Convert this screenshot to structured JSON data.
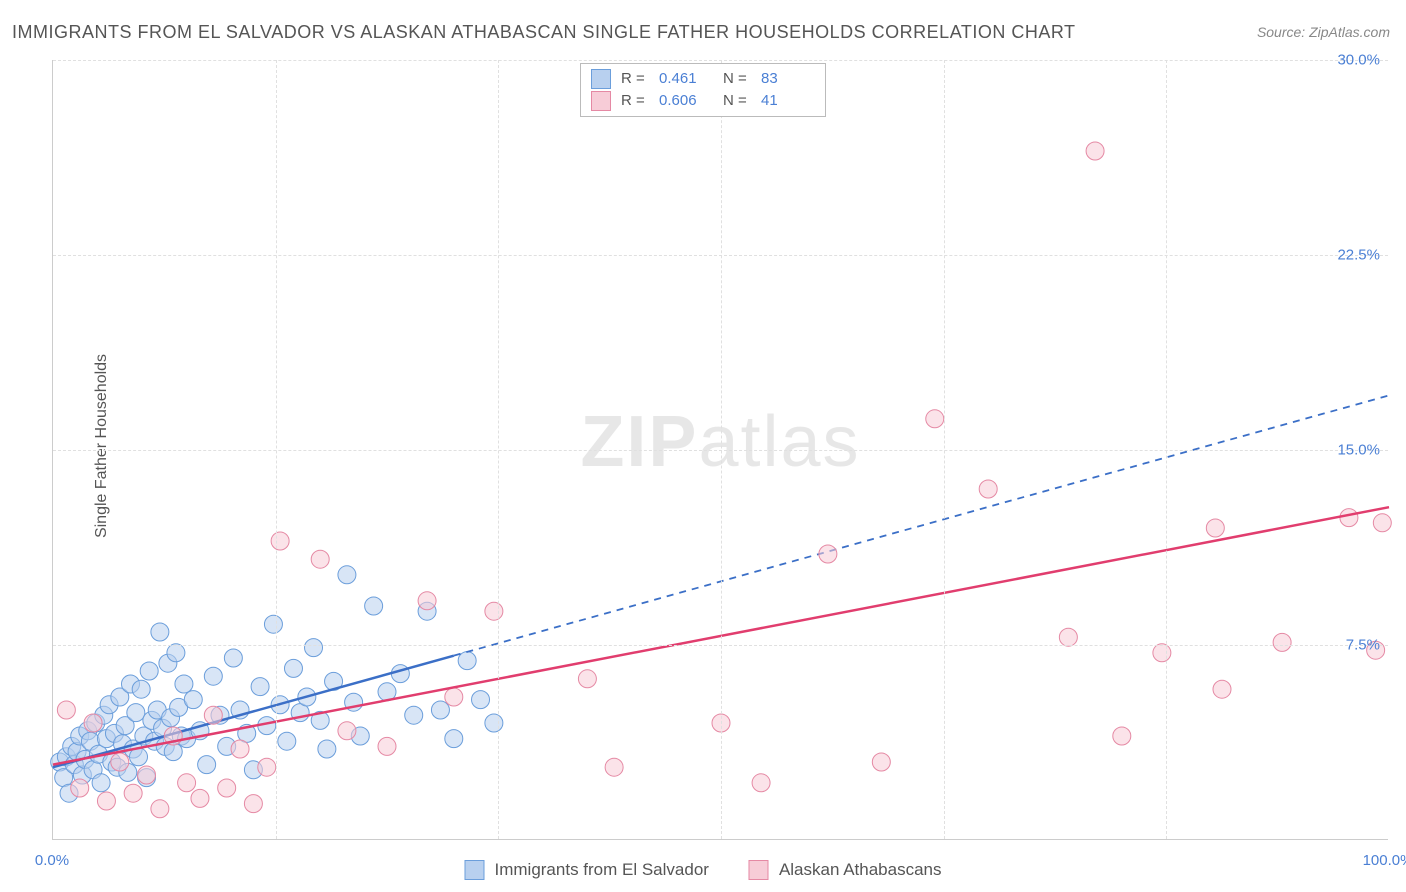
{
  "title": "IMMIGRANTS FROM EL SALVADOR VS ALASKAN ATHABASCAN SINGLE FATHER HOUSEHOLDS CORRELATION CHART",
  "source": "Source: ZipAtlas.com",
  "y_axis_label": "Single Father Households",
  "watermark_bold": "ZIP",
  "watermark_light": "atlas",
  "chart": {
    "type": "scatter",
    "background_color": "#ffffff",
    "grid_color": "#e0e0e0",
    "axis_color": "#cccccc",
    "tick_label_color": "#4a7fd4",
    "text_color": "#555555",
    "xlim": [
      0,
      100
    ],
    "ylim": [
      0,
      30
    ],
    "x_ticks": [
      {
        "pos": 0,
        "label": "0.0%"
      },
      {
        "pos": 100,
        "label": "100.0%"
      }
    ],
    "y_ticks": [
      {
        "pos": 7.5,
        "label": "7.5%"
      },
      {
        "pos": 15.0,
        "label": "15.0%"
      },
      {
        "pos": 22.5,
        "label": "22.5%"
      },
      {
        "pos": 30.0,
        "label": "30.0%"
      }
    ],
    "x_gridlines": [
      16.67,
      33.33,
      50,
      66.67,
      83.33
    ],
    "marker_radius": 9,
    "marker_opacity": 0.55,
    "line_width": 2.5
  },
  "r_legend": {
    "rows": [
      {
        "swatch_fill": "#b8d0ef",
        "swatch_border": "#6b9edb",
        "r_label": "R =",
        "r_value": "0.461",
        "n_label": "N =",
        "n_value": "83"
      },
      {
        "swatch_fill": "#f7ccd7",
        "swatch_border": "#e589a4",
        "r_label": "R =",
        "r_value": "0.606",
        "n_label": "N =",
        "n_value": "41"
      }
    ]
  },
  "series": [
    {
      "name": "Immigrants from El Salvador",
      "fill": "#b8d0ef",
      "stroke": "#6b9edb",
      "line_color": "#3b6fc7",
      "line_dash": "none",
      "line_x_range": [
        0,
        30
      ],
      "line_dash_extend_to": 100,
      "slope_per_x": 0.143,
      "intercept": 2.8,
      "points": [
        [
          0.5,
          3.0
        ],
        [
          0.8,
          2.4
        ],
        [
          1.0,
          3.2
        ],
        [
          1.2,
          1.8
        ],
        [
          1.4,
          3.6
        ],
        [
          1.6,
          2.9
        ],
        [
          1.8,
          3.4
        ],
        [
          2.0,
          4.0
        ],
        [
          2.2,
          2.5
        ],
        [
          2.4,
          3.1
        ],
        [
          2.6,
          4.2
        ],
        [
          2.8,
          3.8
        ],
        [
          3.0,
          2.7
        ],
        [
          3.2,
          4.5
        ],
        [
          3.4,
          3.3
        ],
        [
          3.6,
          2.2
        ],
        [
          3.8,
          4.8
        ],
        [
          4.0,
          3.9
        ],
        [
          4.2,
          5.2
        ],
        [
          4.4,
          3.0
        ],
        [
          4.6,
          4.1
        ],
        [
          4.8,
          2.8
        ],
        [
          5.0,
          5.5
        ],
        [
          5.2,
          3.7
        ],
        [
          5.4,
          4.4
        ],
        [
          5.6,
          2.6
        ],
        [
          5.8,
          6.0
        ],
        [
          6.0,
          3.5
        ],
        [
          6.2,
          4.9
        ],
        [
          6.4,
          3.2
        ],
        [
          6.6,
          5.8
        ],
        [
          6.8,
          4.0
        ],
        [
          7.0,
          2.4
        ],
        [
          7.2,
          6.5
        ],
        [
          7.4,
          4.6
        ],
        [
          7.6,
          3.8
        ],
        [
          7.8,
          5.0
        ],
        [
          8.0,
          8.0
        ],
        [
          8.2,
          4.3
        ],
        [
          8.4,
          3.6
        ],
        [
          8.6,
          6.8
        ],
        [
          8.8,
          4.7
        ],
        [
          9.0,
          3.4
        ],
        [
          9.2,
          7.2
        ],
        [
          9.4,
          5.1
        ],
        [
          9.6,
          4.0
        ],
        [
          9.8,
          6.0
        ],
        [
          10.0,
          3.9
        ],
        [
          10.5,
          5.4
        ],
        [
          11.0,
          4.2
        ],
        [
          11.5,
          2.9
        ],
        [
          12.0,
          6.3
        ],
        [
          12.5,
          4.8
        ],
        [
          13.0,
          3.6
        ],
        [
          13.5,
          7.0
        ],
        [
          14.0,
          5.0
        ],
        [
          14.5,
          4.1
        ],
        [
          15.0,
          2.7
        ],
        [
          15.5,
          5.9
        ],
        [
          16.0,
          4.4
        ],
        [
          16.5,
          8.3
        ],
        [
          17.0,
          5.2
        ],
        [
          17.5,
          3.8
        ],
        [
          18.0,
          6.6
        ],
        [
          18.5,
          4.9
        ],
        [
          19.0,
          5.5
        ],
        [
          19.5,
          7.4
        ],
        [
          20.0,
          4.6
        ],
        [
          20.5,
          3.5
        ],
        [
          21.0,
          6.1
        ],
        [
          22.0,
          10.2
        ],
        [
          22.5,
          5.3
        ],
        [
          23.0,
          4.0
        ],
        [
          24.0,
          9.0
        ],
        [
          25.0,
          5.7
        ],
        [
          26.0,
          6.4
        ],
        [
          27.0,
          4.8
        ],
        [
          28.0,
          8.8
        ],
        [
          29.0,
          5.0
        ],
        [
          30.0,
          3.9
        ],
        [
          31.0,
          6.9
        ],
        [
          32.0,
          5.4
        ],
        [
          33.0,
          4.5
        ]
      ]
    },
    {
      "name": "Alaskan Athabascans",
      "fill": "#f7ccd7",
      "stroke": "#e589a4",
      "line_color": "#e13d6e",
      "line_dash": "none",
      "line_x_range": [
        0,
        100
      ],
      "slope_per_x": 0.099,
      "intercept": 2.9,
      "points": [
        [
          1.0,
          5.0
        ],
        [
          2.0,
          2.0
        ],
        [
          3.0,
          4.5
        ],
        [
          4.0,
          1.5
        ],
        [
          5.0,
          3.0
        ],
        [
          6.0,
          1.8
        ],
        [
          7.0,
          2.5
        ],
        [
          8.0,
          1.2
        ],
        [
          9.0,
          4.0
        ],
        [
          10.0,
          2.2
        ],
        [
          11.0,
          1.6
        ],
        [
          12.0,
          4.8
        ],
        [
          13.0,
          2.0
        ],
        [
          14.0,
          3.5
        ],
        [
          15.0,
          1.4
        ],
        [
          16.0,
          2.8
        ],
        [
          17.0,
          11.5
        ],
        [
          20.0,
          10.8
        ],
        [
          22.0,
          4.2
        ],
        [
          25.0,
          3.6
        ],
        [
          28.0,
          9.2
        ],
        [
          30.0,
          5.5
        ],
        [
          33.0,
          8.8
        ],
        [
          40.0,
          6.2
        ],
        [
          42.0,
          2.8
        ],
        [
          50.0,
          4.5
        ],
        [
          53.0,
          2.2
        ],
        [
          58.0,
          11.0
        ],
        [
          62.0,
          3.0
        ],
        [
          66.0,
          16.2
        ],
        [
          70.0,
          13.5
        ],
        [
          76.0,
          7.8
        ],
        [
          78.0,
          26.5
        ],
        [
          80.0,
          4.0
        ],
        [
          83.0,
          7.2
        ],
        [
          87.0,
          12.0
        ],
        [
          87.5,
          5.8
        ],
        [
          92.0,
          7.6
        ],
        [
          97.0,
          12.4
        ],
        [
          99.0,
          7.3
        ],
        [
          99.5,
          12.2
        ]
      ]
    }
  ],
  "bottom_legend": [
    {
      "swatch_fill": "#b8d0ef",
      "swatch_border": "#6b9edb",
      "label": "Immigrants from El Salvador"
    },
    {
      "swatch_fill": "#f7ccd7",
      "swatch_border": "#e589a4",
      "label": "Alaskan Athabascans"
    }
  ]
}
